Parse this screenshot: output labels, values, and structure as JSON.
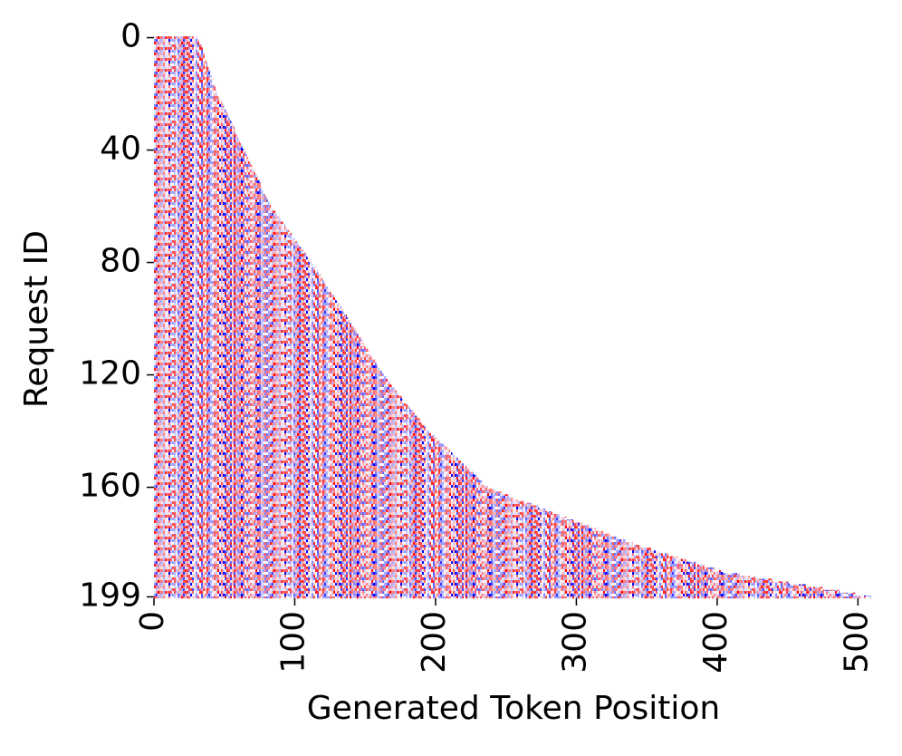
{
  "chart_data": {
    "type": "heatmap",
    "x_label": "Generated Token Position",
    "y_label": "Request ID",
    "xlim": [
      0,
      512
    ],
    "xticks": [
      0,
      100,
      200,
      300,
      400,
      500
    ],
    "ylim": [
      0,
      200
    ],
    "yticks": [
      0,
      40,
      80,
      120,
      160,
      199
    ],
    "colors": [
      "#0000ff",
      "#ffffff",
      "#ff0000"
    ],
    "values": [
      32,
      33,
      33,
      34,
      35,
      35,
      36,
      36,
      37,
      38,
      38,
      39,
      40,
      40,
      41,
      42,
      42,
      43,
      44,
      44,
      45,
      46,
      47,
      48,
      49,
      50,
      51,
      52,
      53,
      54,
      55,
      56,
      57,
      57,
      58,
      59,
      60,
      61,
      62,
      63,
      64,
      65,
      66,
      67,
      68,
      69,
      70,
      71,
      72,
      73,
      74,
      75,
      76,
      76,
      77,
      78,
      79,
      80,
      81,
      82,
      83,
      84,
      86,
      87,
      89,
      90,
      92,
      93,
      95,
      96,
      98,
      99,
      100,
      102,
      103,
      105,
      106,
      108,
      109,
      111,
      112,
      113,
      115,
      116,
      117,
      119,
      120,
      121,
      122,
      124,
      125,
      126,
      128,
      129,
      130,
      132,
      133,
      134,
      135,
      137,
      138,
      139,
      140,
      142,
      143,
      144,
      145,
      147,
      148,
      149,
      150,
      152,
      153,
      154,
      155,
      157,
      158,
      159,
      160,
      162,
      163,
      165,
      166,
      168,
      169,
      171,
      173,
      174,
      176,
      177,
      179,
      181,
      182,
      184,
      185,
      187,
      189,
      190,
      192,
      193,
      195,
      197,
      199,
      201,
      203,
      206,
      208,
      210,
      212,
      214,
      216,
      218,
      220,
      222,
      224,
      227,
      229,
      231,
      233,
      235,
      237,
      242,
      247,
      252,
      257,
      263,
      268,
      273,
      278,
      283,
      288,
      293,
      298,
      304,
      309,
      314,
      319,
      324,
      330,
      335,
      340,
      346,
      353,
      359,
      366,
      372,
      378,
      385,
      391,
      398,
      404,
      416,
      428,
      439,
      451,
      463,
      475,
      487,
      498,
      510
    ]
  }
}
